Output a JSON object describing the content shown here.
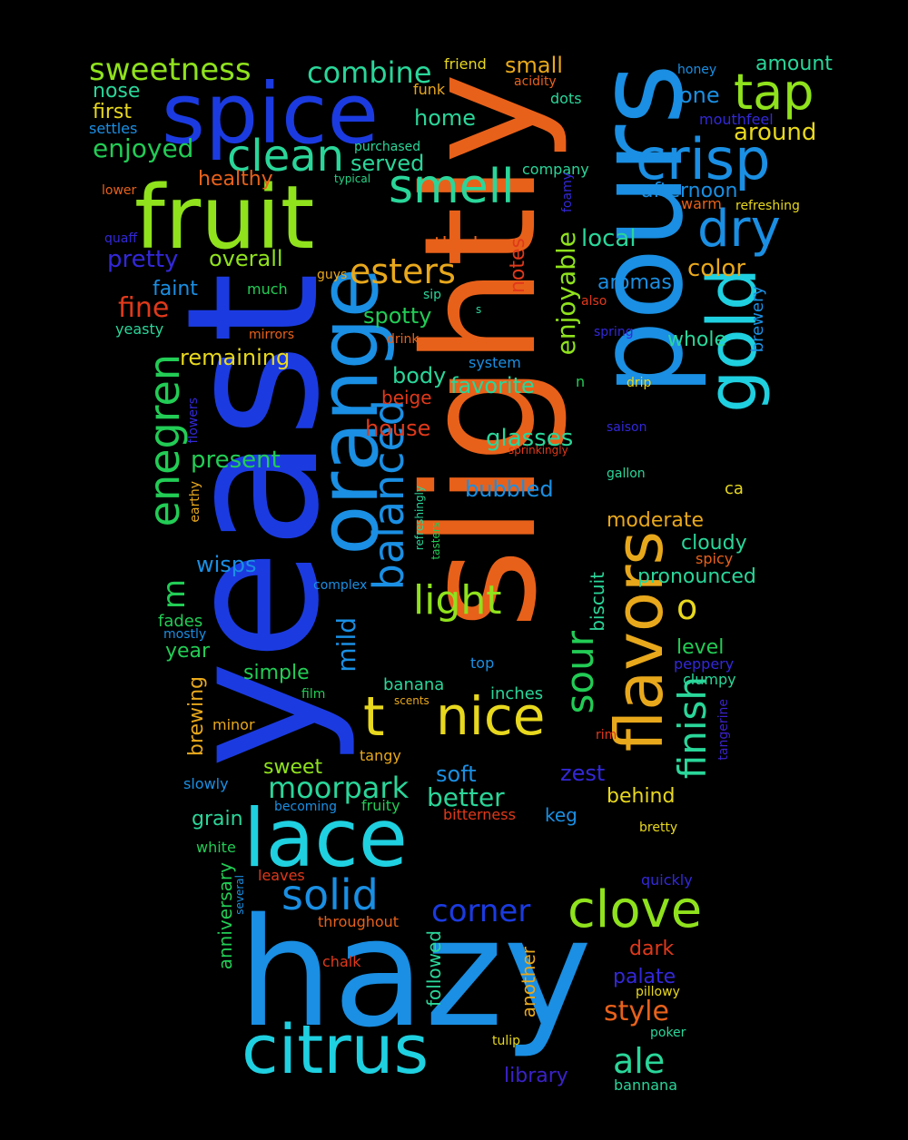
{
  "colors": {
    "background": "#000000",
    "palette": {
      "orange": "#e8611a",
      "blue": "#1b3be0",
      "skyblue": "#1a8fe3",
      "cyan": "#1fd0e0",
      "lime": "#8fe21c",
      "green": "#22cc55",
      "teal": "#2ad69a",
      "yellow": "#e8d81e",
      "amber": "#e8a81c",
      "red": "#e0391a",
      "indigo": "#3328d8",
      "blueviolet": "#3a22c8",
      "mint": "#28d486"
    }
  },
  "words": [
    {
      "text": "slightly",
      "color": "orange"
    },
    {
      "text": "yeast",
      "color": "blue"
    },
    {
      "text": "hazy",
      "color": "skyblue"
    },
    {
      "text": "pours",
      "color": "skyblue"
    },
    {
      "text": "fruit",
      "color": "lime"
    },
    {
      "text": "spice",
      "color": "blue"
    },
    {
      "text": "orange",
      "color": "skyblue"
    },
    {
      "text": "lace",
      "color": "cyan"
    },
    {
      "text": "citrus",
      "color": "cyan"
    },
    {
      "text": "flavors",
      "color": "amber"
    },
    {
      "text": "gold",
      "color": "cyan"
    },
    {
      "text": "crisp",
      "color": "skyblue"
    },
    {
      "text": "nice",
      "color": "yellow"
    },
    {
      "text": "t",
      "color": "yellow"
    },
    {
      "text": "clove",
      "color": "lime"
    },
    {
      "text": "tap",
      "color": "lime"
    },
    {
      "text": "dry",
      "color": "skyblue"
    },
    {
      "text": "smell",
      "color": "teal"
    },
    {
      "text": "clean",
      "color": "teal"
    },
    {
      "text": "balanced",
      "color": "skyblue"
    },
    {
      "text": "enegren",
      "color": "green"
    },
    {
      "text": "solid",
      "color": "skyblue"
    },
    {
      "text": "light",
      "color": "lime"
    },
    {
      "text": "finish",
      "color": "teal"
    },
    {
      "text": "sour",
      "color": "green"
    },
    {
      "text": "esters",
      "color": "amber"
    },
    {
      "text": "sweetness",
      "color": "lime"
    },
    {
      "text": "combine",
      "color": "teal"
    },
    {
      "text": "ale",
      "color": "teal"
    },
    {
      "text": "corner",
      "color": "blue"
    },
    {
      "text": "moorpark",
      "color": "teal"
    },
    {
      "text": "style",
      "color": "orange"
    },
    {
      "text": "m",
      "color": "green"
    },
    {
      "text": "o",
      "color": "yellow"
    },
    {
      "text": "enjoyable",
      "color": "lime"
    },
    {
      "text": "mild",
      "color": "skyblue"
    },
    {
      "text": "fine",
      "color": "red"
    },
    {
      "text": "enjoyed",
      "color": "green"
    },
    {
      "text": "pretty",
      "color": "indigo"
    },
    {
      "text": "better",
      "color": "teal"
    },
    {
      "text": "around",
      "color": "yellow"
    },
    {
      "text": "color",
      "color": "amber"
    },
    {
      "text": "local",
      "color": "teal"
    },
    {
      "text": "afternoon",
      "color": "skyblue"
    },
    {
      "text": "small",
      "color": "amber"
    },
    {
      "text": "amount",
      "color": "teal"
    },
    {
      "text": "one",
      "color": "skyblue"
    },
    {
      "text": "home",
      "color": "teal"
    },
    {
      "text": "served",
      "color": "teal"
    },
    {
      "text": "healthy",
      "color": "orange"
    },
    {
      "text": "overall",
      "color": "lime"
    },
    {
      "text": "remaining",
      "color": "yellow"
    },
    {
      "text": "present",
      "color": "green"
    },
    {
      "text": "house",
      "color": "red"
    },
    {
      "text": "glasses",
      "color": "teal"
    },
    {
      "text": "bubbled",
      "color": "skyblue"
    },
    {
      "text": "body",
      "color": "teal"
    },
    {
      "text": "favorite",
      "color": "teal"
    },
    {
      "text": "spotty",
      "color": "green"
    },
    {
      "text": "aromas",
      "color": "skyblue"
    },
    {
      "text": "whole",
      "color": "teal"
    },
    {
      "text": "moderate",
      "color": "amber"
    },
    {
      "text": "cloudy",
      "color": "teal"
    },
    {
      "text": "pronounced",
      "color": "teal"
    },
    {
      "text": "level",
      "color": "green"
    },
    {
      "text": "nose",
      "color": "teal"
    },
    {
      "text": "first",
      "color": "yellow"
    },
    {
      "text": "faint",
      "color": "skyblue"
    },
    {
      "text": "think",
      "color": "orange"
    },
    {
      "text": "notes",
      "color": "red"
    },
    {
      "text": "wisps",
      "color": "skyblue"
    },
    {
      "text": "year",
      "color": "green"
    },
    {
      "text": "simple",
      "color": "green"
    },
    {
      "text": "sweet",
      "color": "lime"
    },
    {
      "text": "soft",
      "color": "skyblue"
    },
    {
      "text": "zest",
      "color": "indigo"
    },
    {
      "text": "behind",
      "color": "yellow"
    },
    {
      "text": "dark",
      "color": "red"
    },
    {
      "text": "palate",
      "color": "indigo"
    },
    {
      "text": "library",
      "color": "blueviolet"
    },
    {
      "text": "grain",
      "color": "teal"
    },
    {
      "text": "biscuit",
      "color": "teal"
    },
    {
      "text": "brewing",
      "color": "amber"
    },
    {
      "text": "anniversary",
      "color": "green"
    },
    {
      "text": "another",
      "color": "amber"
    },
    {
      "text": "followed",
      "color": "teal"
    },
    {
      "text": "brewery",
      "color": "skyblue"
    },
    {
      "text": "beige",
      "color": "red"
    },
    {
      "text": "fades",
      "color": "green"
    },
    {
      "text": "banana",
      "color": "teal"
    },
    {
      "text": "inches",
      "color": "teal"
    },
    {
      "text": "keg",
      "color": "skyblue"
    },
    {
      "text": "ca",
      "color": "yellow"
    },
    {
      "text": "friend",
      "color": "yellow"
    },
    {
      "text": "funk",
      "color": "amber"
    },
    {
      "text": "dots",
      "color": "teal"
    },
    {
      "text": "much",
      "color": "green"
    },
    {
      "text": "warm",
      "color": "orange"
    },
    {
      "text": "company",
      "color": "teal"
    },
    {
      "text": "top",
      "color": "skyblue"
    },
    {
      "text": "clumpy",
      "color": "teal"
    },
    {
      "text": "peppery",
      "color": "indigo"
    },
    {
      "text": "spicy",
      "color": "orange"
    },
    {
      "text": "slowly",
      "color": "skyblue"
    },
    {
      "text": "fruity",
      "color": "green"
    },
    {
      "text": "bitterness",
      "color": "red"
    },
    {
      "text": "white",
      "color": "green"
    },
    {
      "text": "leaves",
      "color": "red"
    },
    {
      "text": "quickly",
      "color": "indigo"
    },
    {
      "text": "throughout",
      "color": "orange"
    },
    {
      "text": "minor",
      "color": "amber"
    },
    {
      "text": "tangy",
      "color": "amber"
    },
    {
      "text": "bannana",
      "color": "teal"
    },
    {
      "text": "system",
      "color": "skyblue"
    },
    {
      "text": "foamy",
      "color": "indigo"
    },
    {
      "text": "tangerine",
      "color": "blueviolet"
    },
    {
      "text": "honey",
      "color": "skyblue"
    },
    {
      "text": "acidity",
      "color": "orange"
    },
    {
      "text": "mouthfeel",
      "color": "indigo"
    },
    {
      "text": "settles",
      "color": "skyblue"
    },
    {
      "text": "purchased",
      "color": "teal"
    },
    {
      "text": "typical",
      "color": "mint"
    },
    {
      "text": "lower",
      "color": "orange"
    },
    {
      "text": "quaff",
      "color": "indigo"
    },
    {
      "text": "refreshing",
      "color": "yellow"
    },
    {
      "text": "guys",
      "color": "amber"
    },
    {
      "text": "sip",
      "color": "teal"
    },
    {
      "text": "also",
      "color": "red"
    },
    {
      "text": "s",
      "color": "teal"
    },
    {
      "text": "yeasty",
      "color": "teal"
    },
    {
      "text": "mirrors",
      "color": "orange"
    },
    {
      "text": "drink",
      "color": "orange"
    },
    {
      "text": "spring",
      "color": "indigo"
    },
    {
      "text": "n",
      "color": "green"
    },
    {
      "text": "drip",
      "color": "yellow"
    },
    {
      "text": "saison",
      "color": "indigo"
    },
    {
      "text": "sprinkingly",
      "color": "red"
    },
    {
      "text": "gallon",
      "color": "teal"
    },
    {
      "text": "flowers",
      "color": "indigo"
    },
    {
      "text": "earthy",
      "color": "amber"
    },
    {
      "text": "refreshingly",
      "color": "teal"
    },
    {
      "text": "tasters",
      "color": "green"
    },
    {
      "text": "complex",
      "color": "skyblue"
    },
    {
      "text": "mostly",
      "color": "skyblue"
    },
    {
      "text": "film",
      "color": "green"
    },
    {
      "text": "scents",
      "color": "amber"
    },
    {
      "text": "rim",
      "color": "red"
    },
    {
      "text": "becoming",
      "color": "skyblue"
    },
    {
      "text": "bretty",
      "color": "yellow"
    },
    {
      "text": "several",
      "color": "skyblue"
    },
    {
      "text": "chalk",
      "color": "red"
    },
    {
      "text": "tulip",
      "color": "yellow"
    },
    {
      "text": "pillowy",
      "color": "yellow"
    },
    {
      "text": "poker",
      "color": "teal"
    }
  ]
}
